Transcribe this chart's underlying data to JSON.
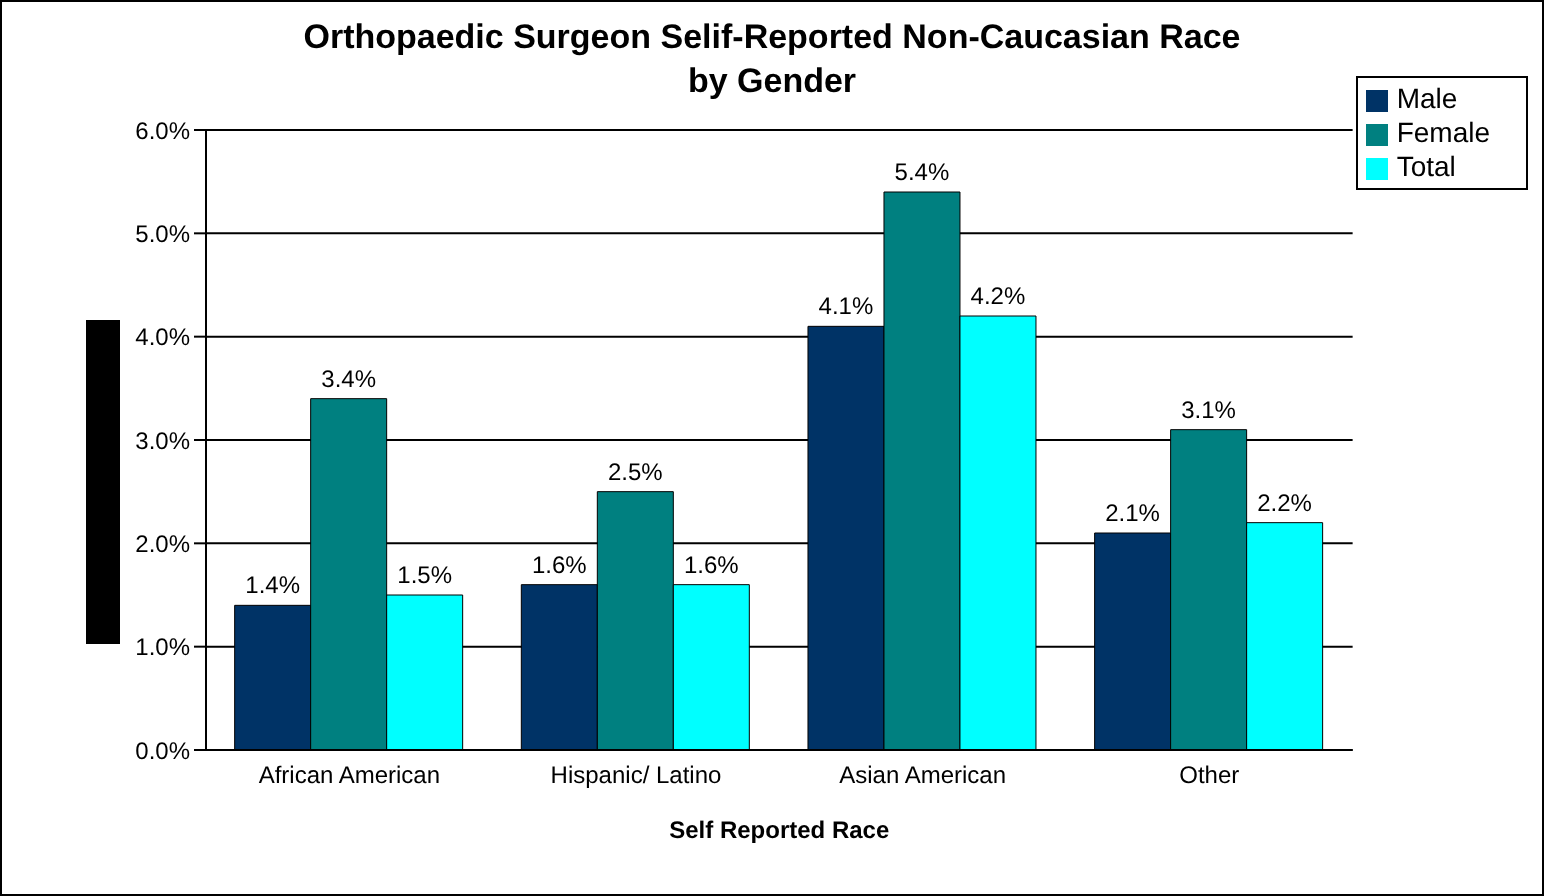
{
  "chart_data": {
    "type": "bar",
    "title": "Orthopaedic Surgeon Selif-Reported Non-Caucasian Race\nby Gender",
    "xlabel": "Self Reported Race",
    "categories": [
      "African American",
      "Hispanic/ Latino",
      "Asian American",
      "Other"
    ],
    "series": [
      {
        "name": "Male",
        "color": "#003366",
        "values": [
          1.4,
          1.6,
          4.1,
          2.1
        ],
        "value_labels": [
          "1.4%",
          "1.6%",
          "4.1%",
          "2.1%"
        ]
      },
      {
        "name": "Female",
        "color": "#008080",
        "values": [
          3.4,
          2.5,
          5.4,
          3.1
        ],
        "value_labels": [
          "3.4%",
          "2.5%",
          "5.4%",
          "3.1%"
        ]
      },
      {
        "name": "Total",
        "color": "#00ffff",
        "values": [
          1.5,
          1.6,
          4.2,
          2.2
        ],
        "value_labels": [
          "1.5%",
          "1.6%",
          "4.2%",
          "2.2%"
        ]
      }
    ],
    "ylim": [
      0,
      6
    ],
    "yticks": [
      {
        "value": 0,
        "label": "0.0%"
      },
      {
        "value": 1,
        "label": "1.0%"
      },
      {
        "value": 2,
        "label": "2.0%"
      },
      {
        "value": 3,
        "label": "3.0%"
      },
      {
        "value": 4,
        "label": "4.0%"
      },
      {
        "value": 5,
        "label": "5.0%"
      },
      {
        "value": 6,
        "label": "6.0%"
      }
    ],
    "grid": "y",
    "legend": "top right"
  }
}
